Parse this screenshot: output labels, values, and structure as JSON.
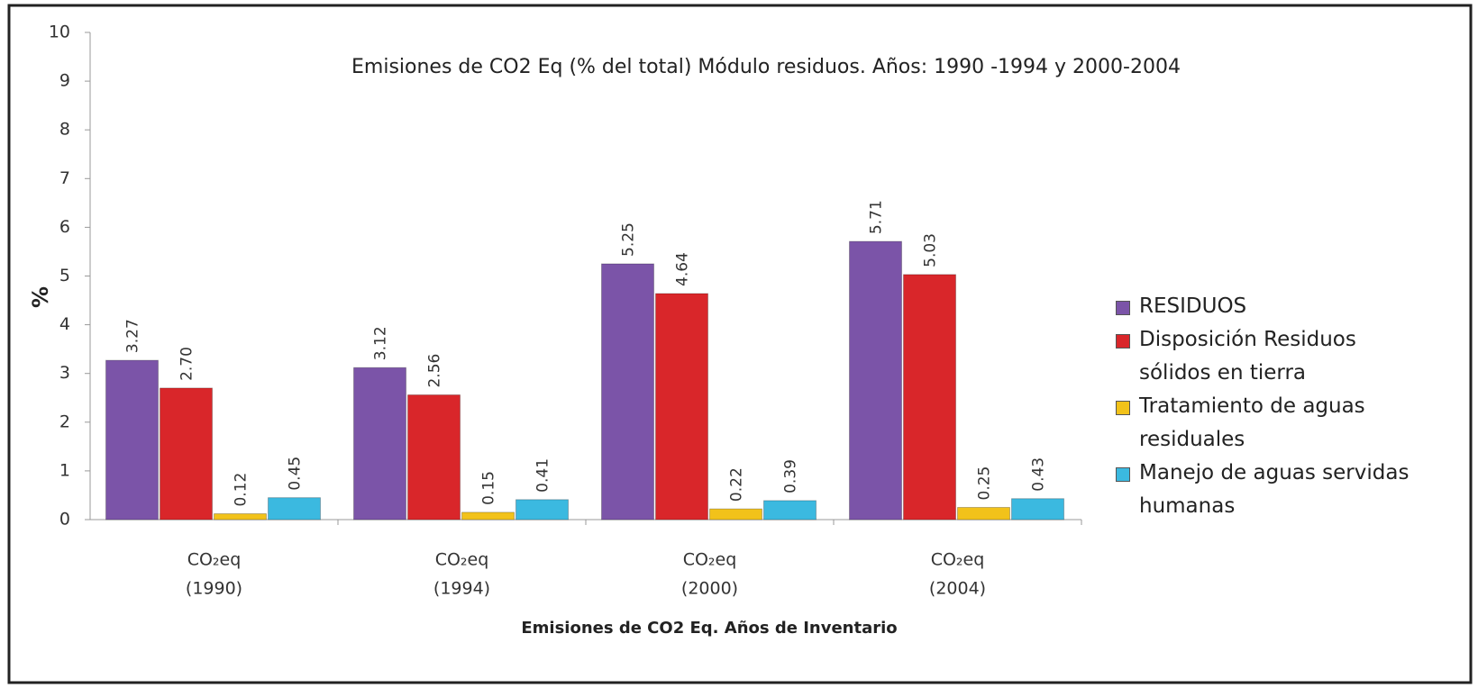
{
  "chart_data": {
    "type": "bar",
    "title": "Emisiones de CO2  Eq (% del total) Módulo residuos. Años: 1990 -1994 y  2000-2004",
    "x_label": "Emisiones de CO2 Eq. Años de Inventario",
    "y_label": "%",
    "categories": [
      [
        "CO₂eq",
        "(1990)"
      ],
      [
        "CO₂eq",
        "(1994)"
      ],
      [
        "CO₂eq",
        "(2000)"
      ],
      [
        "CO₂eq",
        "(2004)"
      ]
    ],
    "series": [
      {
        "name": "RESIDUOS",
        "color": "#7b54a8",
        "values": [
          3.27,
          3.12,
          5.25,
          5.71
        ],
        "value_labels": [
          "3.27",
          "3.12",
          "5.25",
          "5.71"
        ]
      },
      {
        "name": "Disposición Residuos sólidos en tierra",
        "color": "#d9262a",
        "values": [
          2.7,
          2.56,
          4.64,
          5.03
        ],
        "value_labels": [
          "2.70",
          "2.56",
          "4.64",
          "5.03"
        ]
      },
      {
        "name": "Tratamiento de aguas residuales",
        "color": "#f2c21a",
        "values": [
          0.12,
          0.15,
          0.22,
          0.25
        ],
        "value_labels": [
          "0.12",
          "0.15",
          "0.22",
          "0.25"
        ]
      },
      {
        "name": "Manejo de aguas servidas humanas",
        "color": "#3bb9e0",
        "values": [
          0.45,
          0.41,
          0.39,
          0.43
        ],
        "value_labels": [
          "0.45",
          "0.41",
          "0.39",
          "0.43"
        ]
      }
    ],
    "ylim": [
      0,
      10
    ],
    "yticks": [
      0,
      1,
      2,
      3,
      4,
      5,
      6,
      7,
      8,
      9,
      10
    ],
    "grid": false,
    "legend": "right"
  }
}
